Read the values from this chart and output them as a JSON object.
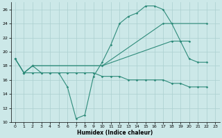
{
  "xlabel": "Humidex (Indice chaleur)",
  "bg_color": "#cce8e8",
  "grid_color": "#aacfcf",
  "line_color": "#2e8b7a",
  "ylim": [
    10,
    27
  ],
  "xlim": [
    -0.5,
    23.5
  ],
  "yticks": [
    10,
    12,
    14,
    16,
    18,
    20,
    22,
    24,
    26
  ],
  "xticks": [
    0,
    1,
    2,
    3,
    4,
    5,
    6,
    7,
    8,
    9,
    10,
    11,
    12,
    13,
    14,
    15,
    16,
    17,
    18,
    19,
    20,
    21,
    22,
    23
  ],
  "line_main_x": [
    0,
    1,
    2,
    3,
    4,
    5,
    6,
    7,
    8,
    9,
    10,
    11,
    12,
    13,
    14,
    15,
    16,
    17,
    18,
    19,
    20,
    21,
    22
  ],
  "line_main_y": [
    19,
    17,
    18,
    17,
    17,
    17,
    15,
    10.5,
    11,
    16.5,
    18.5,
    21,
    24,
    25,
    25.5,
    26.5,
    26.5,
    26,
    24,
    21.5,
    19,
    18.5,
    18.5
  ],
  "line2_x": [
    0,
    1,
    2,
    10,
    17,
    22
  ],
  "line2_y": [
    19,
    17,
    18,
    18,
    24,
    24
  ],
  "line3_x": [
    0,
    1,
    2,
    10,
    18,
    20
  ],
  "line3_y": [
    19,
    17,
    18,
    18,
    21.5,
    21.5
  ],
  "line4_x": [
    1,
    2,
    3,
    4,
    5,
    6,
    7,
    8,
    9,
    10,
    11,
    12,
    13,
    14,
    15,
    16,
    17,
    18,
    19,
    20,
    21,
    22
  ],
  "line4_y": [
    17,
    17,
    17,
    17,
    17,
    17,
    17,
    17,
    17,
    16.5,
    16.5,
    16.5,
    16,
    16,
    16,
    16,
    16,
    15.5,
    15.5,
    15,
    15,
    15
  ]
}
